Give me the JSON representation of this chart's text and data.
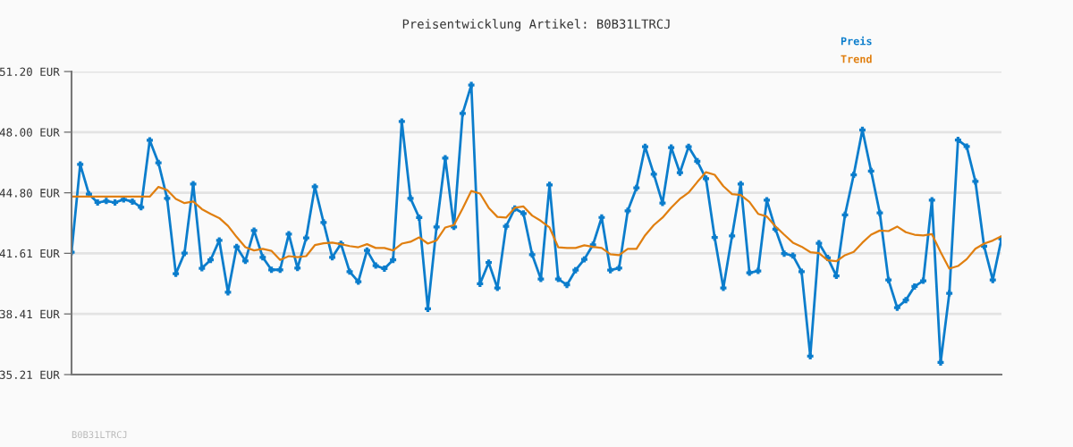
{
  "chart_data": {
    "type": "line",
    "title": "Preisentwicklung Artikel: B0B31LTRCJ",
    "categories": [
      null,
      null,
      null,
      null,
      null,
      null,
      null,
      null,
      null,
      null,
      null,
      null,
      null,
      null,
      null,
      null,
      null,
      null,
      null,
      null,
      null,
      null,
      null,
      null,
      null,
      null,
      null,
      null,
      null,
      null,
      null,
      null,
      null,
      null,
      null,
      null,
      null,
      null,
      null,
      null,
      null,
      null,
      null,
      null,
      null,
      null,
      null,
      null,
      null,
      null,
      null,
      null,
      null,
      null,
      null,
      null,
      null,
      null,
      null,
      null,
      null,
      null,
      null,
      null,
      null,
      null,
      null,
      null,
      null,
      null,
      null,
      null,
      null,
      null,
      null,
      null,
      null,
      null,
      null,
      null,
      null,
      null,
      null,
      null,
      null,
      null,
      null,
      null,
      null,
      null,
      null,
      null,
      null,
      null,
      null,
      null,
      null,
      null,
      null,
      null,
      null,
      null,
      null,
      null,
      null,
      null,
      null,
      null
    ],
    "series": [
      {
        "name": "Preis",
        "color": "#0b7dcc",
        "marker": "cross",
        "values": [
          41.67,
          46.3,
          44.73,
          44.29,
          44.37,
          44.29,
          44.45,
          44.34,
          44.04,
          47.57,
          46.38,
          44.51,
          40.53,
          41.62,
          45.26,
          40.82,
          41.26,
          42.29,
          39.55,
          41.95,
          41.21,
          42.81,
          41.4,
          40.74,
          40.74,
          42.62,
          40.83,
          42.42,
          45.12,
          43.24,
          41.4,
          42.11,
          40.64,
          40.11,
          41.76,
          40.96,
          40.8,
          41.26,
          48.56,
          44.51,
          43.49,
          38.68,
          43.0,
          46.63,
          43.0,
          48.99,
          50.49,
          40.0,
          41.12,
          39.78,
          43.03,
          43.97,
          43.71,
          41.54,
          40.25,
          45.22,
          40.25,
          39.94,
          40.72,
          41.29,
          42.06,
          43.5,
          40.72,
          40.83,
          43.85,
          45.06,
          47.23,
          45.78,
          44.26,
          47.19,
          45.86,
          47.23,
          46.47,
          45.55,
          42.44,
          39.78,
          42.53,
          45.26,
          40.58,
          40.68,
          44.41,
          42.88,
          41.59,
          41.49,
          40.64,
          36.18,
          42.14,
          41.37,
          40.42,
          43.64,
          45.75,
          48.12,
          45.95,
          43.74,
          40.2,
          38.74,
          39.14,
          39.86,
          40.16,
          44.41,
          35.85,
          39.5,
          47.59,
          47.24,
          45.4,
          41.99,
          40.2,
          42.37
        ]
      },
      {
        "name": "Trend",
        "color": "#e07f10",
        "marker": "none",
        "values": [
          44.6,
          44.6,
          44.6,
          44.6,
          44.6,
          44.6,
          44.6,
          44.6,
          44.6,
          44.6,
          45.11,
          44.95,
          44.48,
          44.26,
          44.34,
          43.94,
          43.69,
          43.47,
          43.06,
          42.47,
          41.93,
          41.76,
          41.84,
          41.74,
          41.26,
          41.46,
          41.41,
          41.46,
          42.04,
          42.14,
          42.17,
          42.09,
          41.99,
          41.93,
          42.09,
          41.89,
          41.89,
          41.76,
          42.12,
          42.22,
          42.45,
          42.12,
          42.29,
          42.97,
          43.1,
          43.97,
          44.9,
          44.76,
          44.01,
          43.53,
          43.49,
          44.01,
          44.08,
          43.6,
          43.32,
          42.97,
          41.93,
          41.89,
          41.89,
          42.03,
          41.95,
          41.89,
          41.56,
          41.51,
          41.84,
          41.84,
          42.56,
          43.1,
          43.49,
          44.02,
          44.48,
          44.81,
          45.37,
          45.89,
          45.75,
          45.15,
          44.73,
          44.68,
          44.32,
          43.69,
          43.55,
          43.03,
          42.59,
          42.17,
          41.96,
          41.67,
          41.62,
          41.24,
          41.19,
          41.51,
          41.68,
          42.17,
          42.59,
          42.81,
          42.78,
          43.02,
          42.72,
          42.59,
          42.55,
          42.62,
          41.67,
          40.8,
          40.94,
          41.3,
          41.85,
          42.12,
          42.28,
          42.51
        ]
      }
    ],
    "ylim": [
      35.21,
      51.2
    ],
    "yticks": [
      {
        "value": 35.21,
        "label": "35.21 EUR"
      },
      {
        "value": 38.41,
        "label": "38.41 EUR"
      },
      {
        "value": 41.61,
        "label": "41.61 EUR"
      },
      {
        "value": 44.8,
        "label": "44.80 EUR"
      },
      {
        "value": 48.0,
        "label": "48.00 EUR"
      },
      {
        "value": 51.2,
        "label": "51.20 EUR"
      }
    ],
    "grid": "y",
    "legend": "top right",
    "tick_labels": "y",
    "line_style": "solid",
    "annotations": [
      "B0B31LTRCJ"
    ]
  }
}
